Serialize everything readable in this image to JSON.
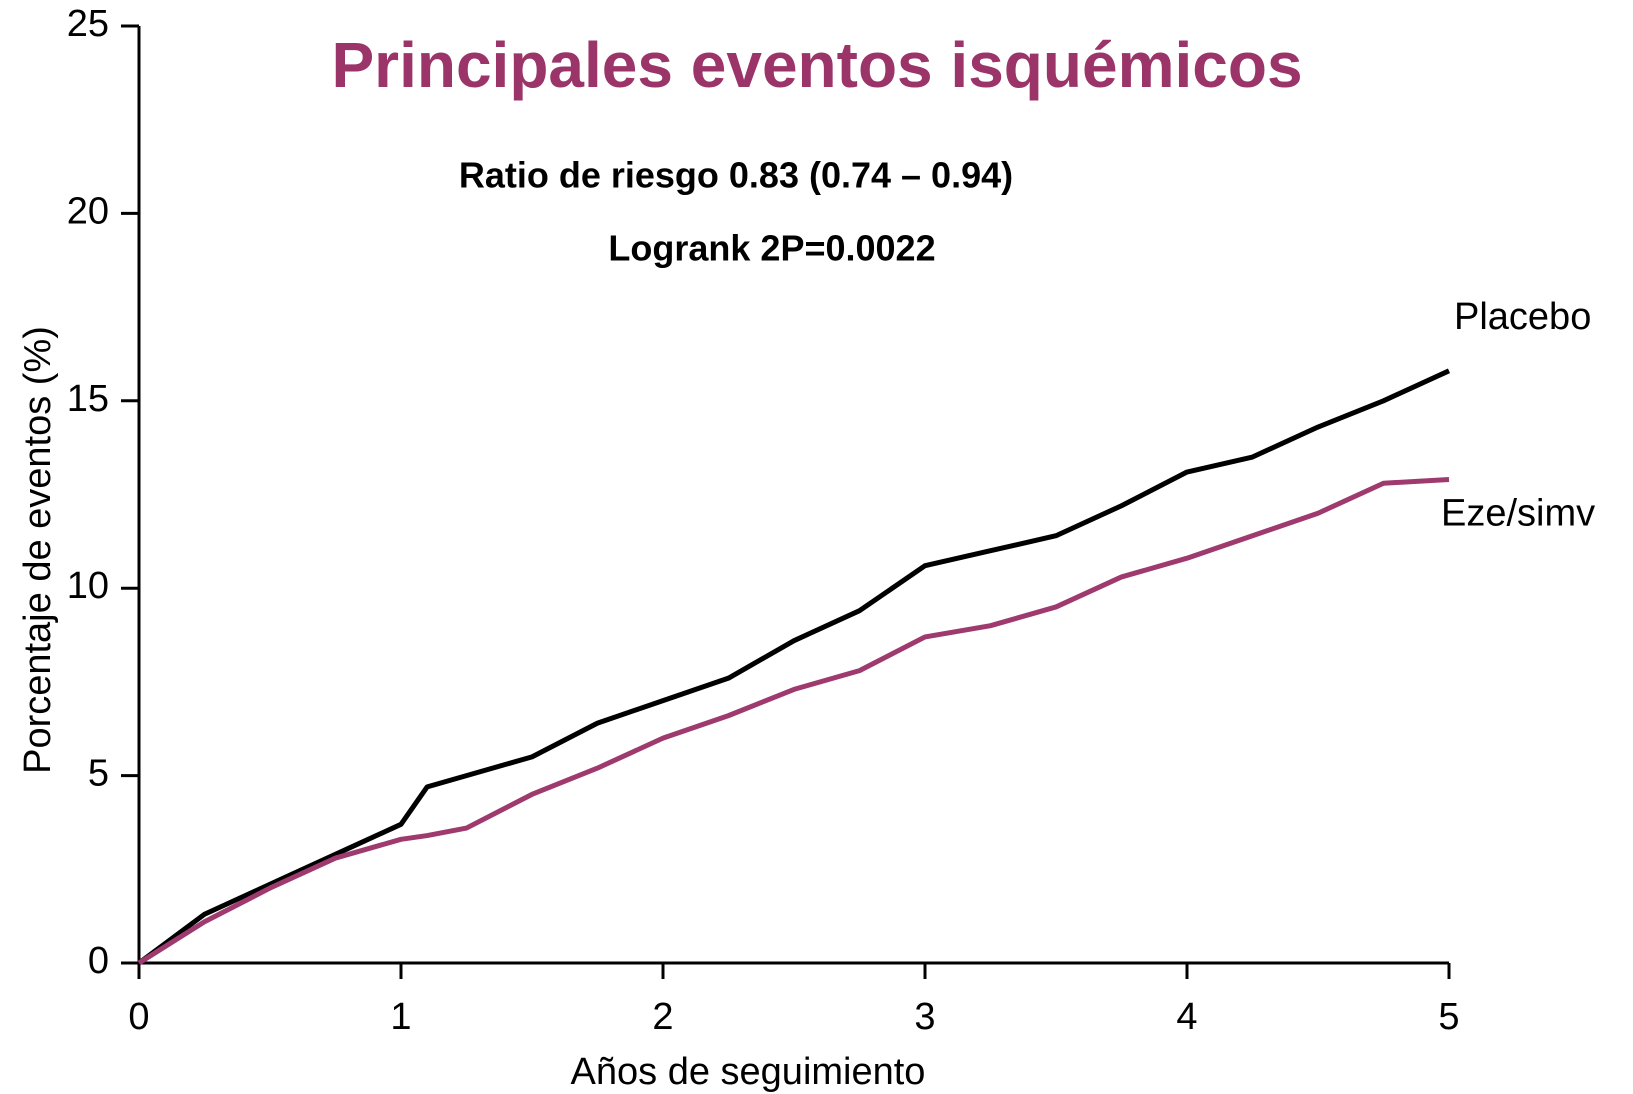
{
  "chart_data": {
    "type": "line",
    "title": "Principales eventos isquémicos",
    "title_color": "#9b3468",
    "annotations": [
      "Ratio de riesgo 0.83 (0.74 – 0.94)",
      "Logrank 2P=0.0022"
    ],
    "x_label": "Años de seguimiento",
    "y_label": "Porcentaje de eventos (%)",
    "x": [
      0,
      0.25,
      0.5,
      0.75,
      1,
      1.1,
      1.25,
      1.5,
      1.75,
      2,
      2.25,
      2.5,
      2.75,
      3,
      3.25,
      3.5,
      3.75,
      4,
      4.25,
      4.5,
      4.75,
      5
    ],
    "series": [
      {
        "name": "Placebo",
        "color": "#000000",
        "values": [
          0,
          1.3,
          2.1,
          2.9,
          3.7,
          4.7,
          5.0,
          5.5,
          6.4,
          7.0,
          7.6,
          8.6,
          9.4,
          10.6,
          11.0,
          11.4,
          12.2,
          13.1,
          13.5,
          14.3,
          15.0,
          15.8
        ]
      },
      {
        "name": "Eze/simv",
        "color": "#9e3a6e",
        "values": [
          0,
          1.1,
          2.0,
          2.8,
          3.3,
          3.4,
          3.6,
          4.5,
          5.2,
          6.0,
          6.6,
          7.3,
          7.8,
          8.7,
          9.0,
          9.5,
          10.3,
          10.8,
          11.4,
          12.0,
          12.8,
          12.9
        ]
      }
    ],
    "xlim": [
      0,
      5
    ],
    "xticks": [
      0,
      1,
      2,
      3,
      4,
      5
    ],
    "ylim": [
      0,
      25
    ],
    "yticks": [
      0,
      5,
      10,
      15,
      20,
      25
    ],
    "grid": false
  }
}
